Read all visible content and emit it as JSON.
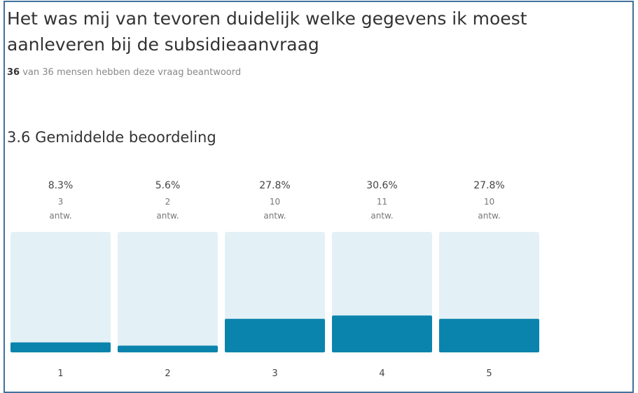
{
  "question": {
    "title": "Het was mij van tevoren duidelijk welke gegevens ik moest aanleveren bij de subsidieaanvraag",
    "respondents_count": "36",
    "respondents_text": "van 36 mensen hebben deze vraag beantwoord"
  },
  "summary": {
    "average_label": "3.6 Gemiddelde beoordeling"
  },
  "colors": {
    "bar_fill": "#0a84ad",
    "bar_background": "#e3f1f6",
    "frame_border": "#41719c"
  },
  "chart_data": {
    "type": "bar",
    "categories": [
      "1",
      "2",
      "3",
      "4",
      "5"
    ],
    "values": [
      8.3,
      5.6,
      27.8,
      30.6,
      27.8
    ],
    "percent_labels": [
      "8.3%",
      "5.6%",
      "27.8%",
      "30.6%",
      "27.8%"
    ],
    "counts": [
      "3",
      "2",
      "10",
      "11",
      "10"
    ],
    "count_unit": "antw.",
    "ylim": [
      0,
      100
    ],
    "title": "",
    "xlabel": "",
    "ylabel": ""
  }
}
